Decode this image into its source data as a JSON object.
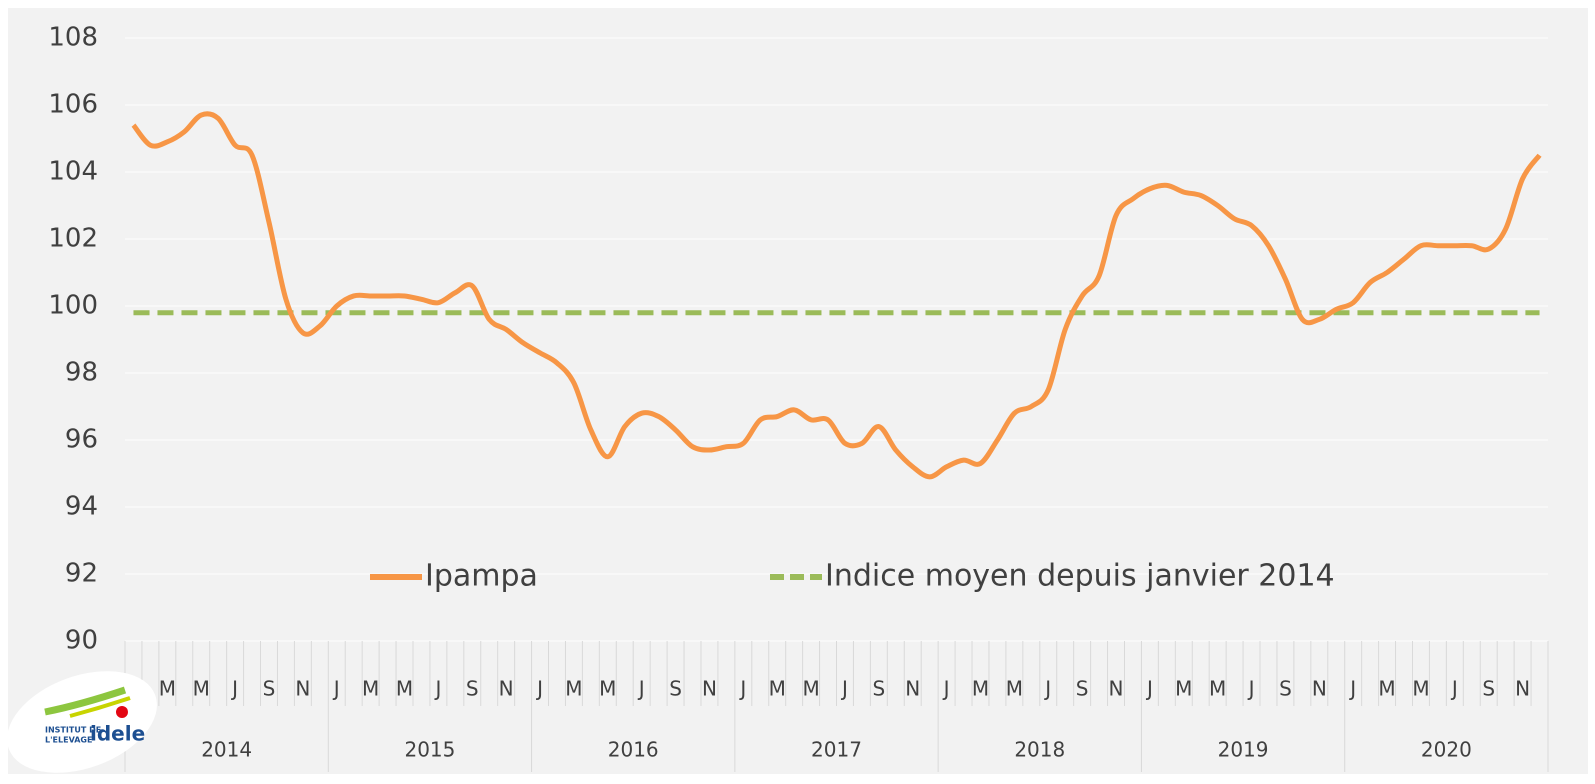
{
  "chart_data": {
    "type": "line",
    "categories": [
      null,
      null,
      "M",
      null,
      "M",
      null,
      "J",
      null,
      "S",
      null,
      "N",
      null,
      "J",
      null,
      "M",
      null,
      "M",
      null,
      "J",
      null,
      "S",
      null,
      "N",
      null,
      "J",
      null,
      "M",
      null,
      "M",
      null,
      "J",
      null,
      "S",
      null,
      "N",
      null,
      "J",
      null,
      "M",
      null,
      "M",
      null,
      "J",
      null,
      "S",
      null,
      "N",
      null,
      "J",
      null,
      "M",
      null,
      "M",
      null,
      "J",
      null,
      "S",
      null,
      "N",
      null,
      "J",
      null,
      "M",
      null,
      "M",
      null,
      "J",
      null,
      "S",
      null,
      "N",
      null,
      "J",
      null,
      "M",
      null,
      "M",
      null,
      "J",
      null,
      "S",
      null,
      "N",
      null
    ],
    "year_groups": [
      "2014",
      "2015",
      "2016",
      "2017",
      "2018",
      "2019",
      "2020"
    ],
    "series": [
      {
        "name": "Ipampa",
        "color": "#f79646",
        "dashed": false,
        "values": [
          105.4,
          104.8,
          104.9,
          105.2,
          105.7,
          105.6,
          104.8,
          104.5,
          102.5,
          100.2,
          99.2,
          99.4,
          100.0,
          100.3,
          100.3,
          100.3,
          100.3,
          100.2,
          100.1,
          100.4,
          100.6,
          99.6,
          99.3,
          98.9,
          98.6,
          98.3,
          97.7,
          96.3,
          95.5,
          96.4,
          96.8,
          96.7,
          96.3,
          95.8,
          95.7,
          95.8,
          95.9,
          96.6,
          96.7,
          96.9,
          96.6,
          96.6,
          95.9,
          95.9,
          96.4,
          95.7,
          95.2,
          94.9,
          95.2,
          95.4,
          95.3,
          96.0,
          96.8,
          97.0,
          97.5,
          99.3,
          100.3,
          100.9,
          102.7,
          103.2,
          103.5,
          103.6,
          103.4,
          103.3,
          103.0,
          102.6,
          102.4,
          101.8,
          100.8,
          99.6,
          99.6,
          99.9,
          100.1,
          100.7,
          101.0,
          101.4,
          101.8,
          101.8,
          101.8,
          101.8,
          101.7,
          102.3,
          103.8,
          104.5
        ]
      },
      {
        "name": "Indice moyen depuis janvier 2014",
        "color": "#9bbb59",
        "dashed": true,
        "values": [
          99.8,
          99.8,
          99.8,
          99.8,
          99.8,
          99.8,
          99.8,
          99.8,
          99.8,
          99.8,
          99.8,
          99.8,
          99.8,
          99.8,
          99.8,
          99.8,
          99.8,
          99.8,
          99.8,
          99.8,
          99.8,
          99.8,
          99.8,
          99.8,
          99.8,
          99.8,
          99.8,
          99.8,
          99.8,
          99.8,
          99.8,
          99.8,
          99.8,
          99.8,
          99.8,
          99.8,
          99.8,
          99.8,
          99.8,
          99.8,
          99.8,
          99.8,
          99.8,
          99.8,
          99.8,
          99.8,
          99.8,
          99.8,
          99.8,
          99.8,
          99.8,
          99.8,
          99.8,
          99.8,
          99.8,
          99.8,
          99.8,
          99.8,
          99.8,
          99.8,
          99.8,
          99.8,
          99.8,
          99.8,
          99.8,
          99.8,
          99.8,
          99.8,
          99.8,
          99.8,
          99.8,
          99.8,
          99.8,
          99.8,
          99.8,
          99.8,
          99.8,
          99.8,
          99.8,
          99.8,
          99.8,
          99.8,
          99.8,
          99.8
        ]
      }
    ],
    "ylim": [
      90,
      108
    ],
    "yticks": [
      90,
      92,
      94,
      96,
      98,
      100,
      102,
      104,
      106,
      108
    ],
    "grid": true,
    "legend": "bottom"
  },
  "logo": {
    "line1": "INSTITUT DE",
    "line2": "L'ELEVAGE",
    "brand": "idele"
  }
}
